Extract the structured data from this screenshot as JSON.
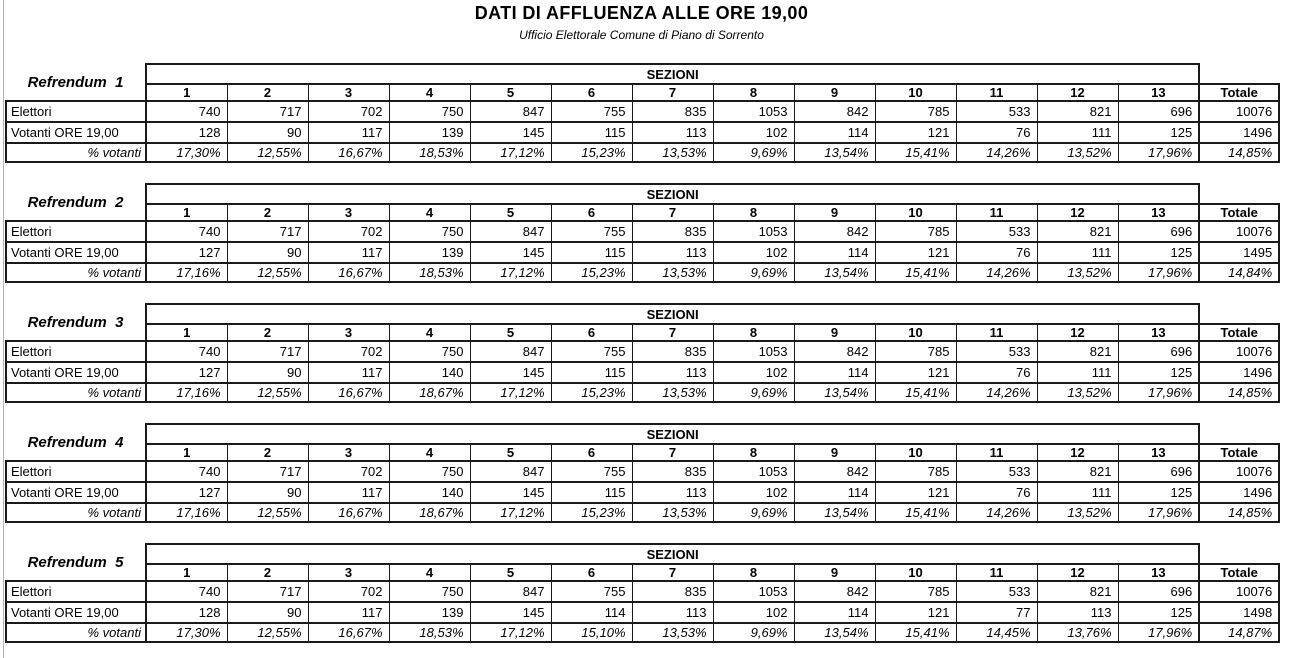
{
  "page": {
    "title": "DATI DI AFFLUENZA ALLE ORE 19,00",
    "subtitle": "Ufficio Elettorale Comune di Piano di Sorrento"
  },
  "table_layout": {
    "sezioni_header": "SEZIONI",
    "totale_header": "Totale",
    "section_numbers": [
      "1",
      "2",
      "3",
      "4",
      "5",
      "6",
      "7",
      "8",
      "9",
      "10",
      "11",
      "12",
      "13"
    ],
    "row_labels": {
      "elettori": "Elettori",
      "votanti": "Votanti ORE 19,00",
      "percent": "% votanti"
    }
  },
  "tables": [
    {
      "label": "Refrendum  1",
      "elettori": [
        "740",
        "717",
        "702",
        "750",
        "847",
        "755",
        "835",
        "1053",
        "842",
        "785",
        "533",
        "821",
        "696"
      ],
      "elettori_totale": "10076",
      "votanti": [
        "128",
        "90",
        "117",
        "139",
        "145",
        "115",
        "113",
        "102",
        "114",
        "121",
        "76",
        "111",
        "125"
      ],
      "votanti_totale": "1496",
      "percent": [
        "17,30%",
        "12,55%",
        "16,67%",
        "18,53%",
        "17,12%",
        "15,23%",
        "13,53%",
        "9,69%",
        "13,54%",
        "15,41%",
        "14,26%",
        "13,52%",
        "17,96%"
      ],
      "percent_totale": "14,85%"
    },
    {
      "label": "Refrendum  2",
      "elettori": [
        "740",
        "717",
        "702",
        "750",
        "847",
        "755",
        "835",
        "1053",
        "842",
        "785",
        "533",
        "821",
        "696"
      ],
      "elettori_totale": "10076",
      "votanti": [
        "127",
        "90",
        "117",
        "139",
        "145",
        "115",
        "113",
        "102",
        "114",
        "121",
        "76",
        "111",
        "125"
      ],
      "votanti_totale": "1495",
      "percent": [
        "17,16%",
        "12,55%",
        "16,67%",
        "18,53%",
        "17,12%",
        "15,23%",
        "13,53%",
        "9,69%",
        "13,54%",
        "15,41%",
        "14,26%",
        "13,52%",
        "17,96%"
      ],
      "percent_totale": "14,84%"
    },
    {
      "label": "Refrendum  3",
      "elettori": [
        "740",
        "717",
        "702",
        "750",
        "847",
        "755",
        "835",
        "1053",
        "842",
        "785",
        "533",
        "821",
        "696"
      ],
      "elettori_totale": "10076",
      "votanti": [
        "127",
        "90",
        "117",
        "140",
        "145",
        "115",
        "113",
        "102",
        "114",
        "121",
        "76",
        "111",
        "125"
      ],
      "votanti_totale": "1496",
      "percent": [
        "17,16%",
        "12,55%",
        "16,67%",
        "18,67%",
        "17,12%",
        "15,23%",
        "13,53%",
        "9,69%",
        "13,54%",
        "15,41%",
        "14,26%",
        "13,52%",
        "17,96%"
      ],
      "percent_totale": "14,85%"
    },
    {
      "label": "Refrendum  4",
      "elettori": [
        "740",
        "717",
        "702",
        "750",
        "847",
        "755",
        "835",
        "1053",
        "842",
        "785",
        "533",
        "821",
        "696"
      ],
      "elettori_totale": "10076",
      "votanti": [
        "127",
        "90",
        "117",
        "140",
        "145",
        "115",
        "113",
        "102",
        "114",
        "121",
        "76",
        "111",
        "125"
      ],
      "votanti_totale": "1496",
      "percent": [
        "17,16%",
        "12,55%",
        "16,67%",
        "18,67%",
        "17,12%",
        "15,23%",
        "13,53%",
        "9,69%",
        "13,54%",
        "15,41%",
        "14,26%",
        "13,52%",
        "17,96%"
      ],
      "percent_totale": "14,85%"
    },
    {
      "label": "Refrendum  5",
      "elettori": [
        "740",
        "717",
        "702",
        "750",
        "847",
        "755",
        "835",
        "1053",
        "842",
        "785",
        "533",
        "821",
        "696"
      ],
      "elettori_totale": "10076",
      "votanti": [
        "128",
        "90",
        "117",
        "139",
        "145",
        "114",
        "113",
        "102",
        "114",
        "121",
        "77",
        "113",
        "125"
      ],
      "votanti_totale": "1498",
      "percent": [
        "17,30%",
        "12,55%",
        "16,67%",
        "18,53%",
        "17,12%",
        "15,10%",
        "13,53%",
        "9,69%",
        "13,54%",
        "15,41%",
        "14,45%",
        "13,76%",
        "17,96%"
      ],
      "percent_totale": "14,87%"
    }
  ]
}
